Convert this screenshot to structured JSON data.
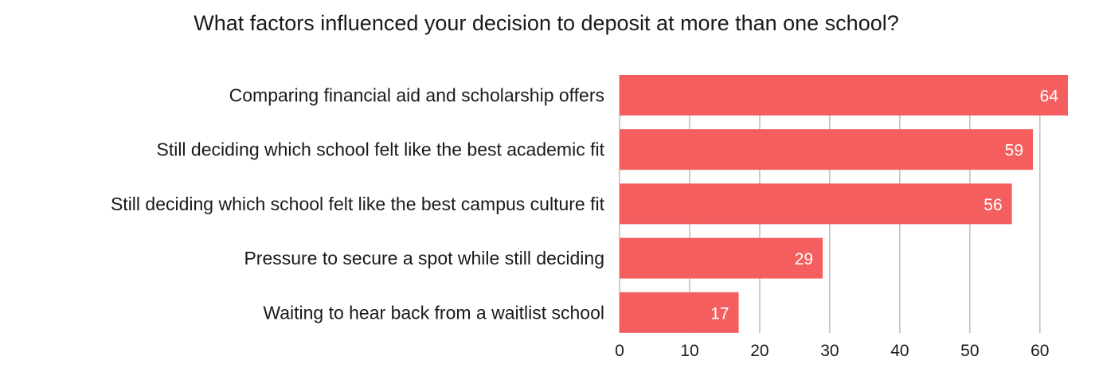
{
  "chart_data": {
    "type": "bar",
    "orientation": "horizontal",
    "title": "What factors influenced your decision to deposit at more than one school?",
    "categories": [
      "Comparing financial aid and scholarship offers",
      "Still deciding which school felt like the best academic fit",
      "Still deciding which school felt like the best campus culture fit",
      "Pressure to secure a spot while still deciding",
      "Waiting to hear back from a waitlist school"
    ],
    "values": [
      64,
      59,
      56,
      29,
      17
    ],
    "data_labels": [
      "64",
      "59",
      "56",
      "29",
      "17"
    ],
    "xlim": [
      0,
      64
    ],
    "x_ticks": [
      0,
      10,
      20,
      30,
      40,
      50,
      60
    ],
    "x_tick_labels": [
      "0",
      "10",
      "20",
      "30",
      "40",
      "50",
      "60"
    ],
    "xlabel": "",
    "ylabel": "",
    "grid": "vertical",
    "legend": "none",
    "colors": {
      "bar": "#F45E5E",
      "grid": "#BDBDBD",
      "text": "#1A1A1A",
      "label_on_bar": "#FFFFFF"
    }
  }
}
